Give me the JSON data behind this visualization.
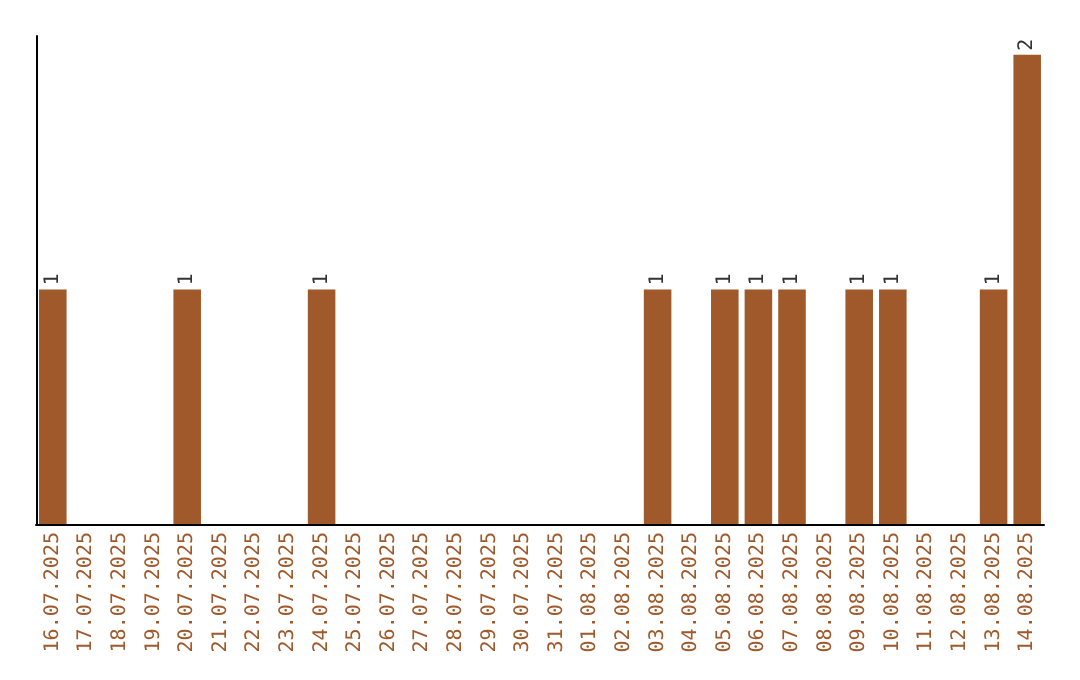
{
  "chart_data": {
    "type": "bar",
    "categories": [
      "16.07.2025",
      "17.07.2025",
      "18.07.2025",
      "19.07.2025",
      "20.07.2025",
      "21.07.2025",
      "22.07.2025",
      "23.07.2025",
      "24.07.2025",
      "25.07.2025",
      "26.07.2025",
      "27.07.2025",
      "28.07.2025",
      "29.07.2025",
      "30.07.2025",
      "31.07.2025",
      "01.08.2025",
      "02.08.2025",
      "03.08.2025",
      "04.08.2025",
      "05.08.2025",
      "06.08.2025",
      "07.08.2025",
      "08.08.2025",
      "09.08.2025",
      "10.08.2025",
      "11.08.2025",
      "12.08.2025",
      "13.08.2025",
      "14.08.2025"
    ],
    "values": [
      1,
      0,
      0,
      0,
      1,
      0,
      0,
      0,
      1,
      0,
      0,
      0,
      0,
      0,
      0,
      0,
      0,
      0,
      1,
      0,
      1,
      1,
      1,
      0,
      1,
      1,
      0,
      0,
      1,
      2
    ],
    "value_labels": [
      "1",
      null,
      null,
      null,
      "1",
      null,
      null,
      null,
      "1",
      null,
      null,
      null,
      null,
      null,
      null,
      null,
      null,
      null,
      "1",
      null,
      "1",
      "1",
      "1",
      null,
      "1",
      "1",
      null,
      null,
      "1",
      "2"
    ],
    "color": "#a0592b",
    "grid": false
  }
}
